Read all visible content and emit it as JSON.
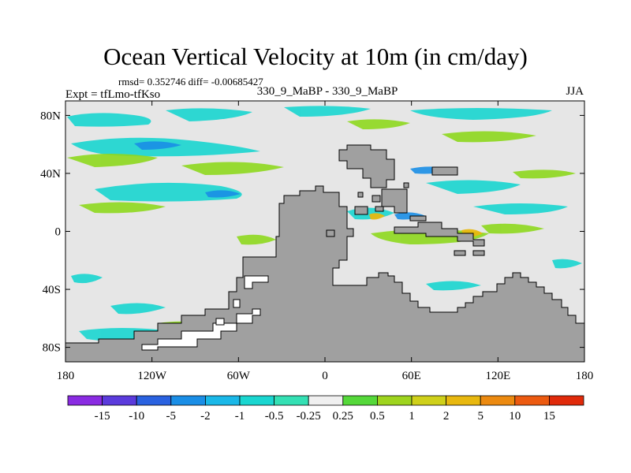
{
  "title": "Ocean Vertical Velocity at 10m (in cm/day)",
  "stats_text": "rmsd= 0.352746 diff= -0.00685427",
  "experiment_label": "Expt = tfLmo-tfKso",
  "center_label": "330_9_MaBP - 330_9_MaBP",
  "season_label": "JJA",
  "map": {
    "longitude_range": [
      -180,
      180
    ],
    "latitude_range": [
      -90,
      90
    ],
    "x_ticks": [
      "180",
      "120W",
      "60W",
      "0",
      "60E",
      "120E",
      "180"
    ],
    "y_ticks": [
      "80N",
      "40N",
      "0",
      "40S",
      "80S"
    ],
    "land_color": "#a0a0a0",
    "ocean_color": "#e6e6e6"
  },
  "colorbar": {
    "labels": [
      "-15",
      "-10",
      "-5",
      "-2",
      "-1",
      "-0.5",
      "-0.25",
      "0.25",
      "0.5",
      "1",
      "2",
      "5",
      "10",
      "15"
    ],
    "colors": [
      "#8a2be2",
      "#5b3bdc",
      "#2a62e0",
      "#1a8ee6",
      "#1ab8e8",
      "#1ad6d0",
      "#34e0b4",
      "#f0f0f0",
      "#55d83a",
      "#9ed41e",
      "#cfd01a",
      "#e8b80f",
      "#ec8a10",
      "#ec5a10",
      "#e02a0a"
    ]
  }
}
